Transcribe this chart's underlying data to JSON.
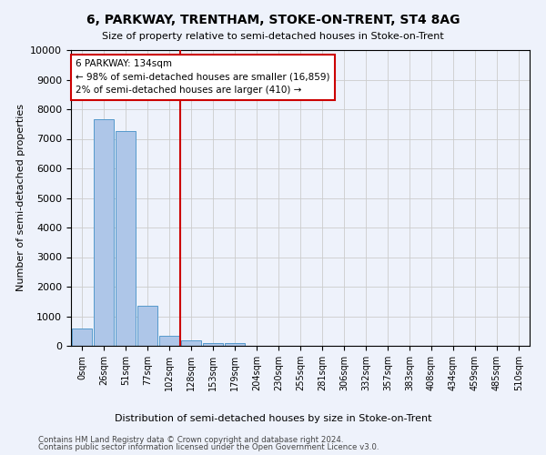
{
  "title": "6, PARKWAY, TRENTHAM, STOKE-ON-TRENT, ST4 8AG",
  "subtitle": "Size of property relative to semi-detached houses in Stoke-on-Trent",
  "xlabel": "Distribution of semi-detached houses by size in Stoke-on-Trent",
  "ylabel": "Number of semi-detached properties",
  "footer_line1": "Contains HM Land Registry data © Crown copyright and database right 2024.",
  "footer_line2": "Contains public sector information licensed under the Open Government Licence v3.0.",
  "bar_labels": [
    "0sqm",
    "26sqm",
    "51sqm",
    "77sqm",
    "102sqm",
    "128sqm",
    "153sqm",
    "179sqm",
    "204sqm",
    "230sqm",
    "255sqm",
    "281sqm",
    "306sqm",
    "332sqm",
    "357sqm",
    "383sqm",
    "408sqm",
    "434sqm",
    "459sqm",
    "485sqm",
    "510sqm"
  ],
  "bar_values": [
    580,
    7650,
    7250,
    1350,
    330,
    170,
    100,
    90,
    0,
    0,
    0,
    0,
    0,
    0,
    0,
    0,
    0,
    0,
    0,
    0,
    0
  ],
  "bar_color": "#aec6e8",
  "bar_edge_color": "#5599cc",
  "vline_pos": 4.5,
  "annotation_title": "6 PARKWAY: 134sqm",
  "annotation_line1": "← 98% of semi-detached houses are smaller (16,859)",
  "annotation_line2": "2% of semi-detached houses are larger (410) →",
  "annotation_box_color": "#ffffff",
  "annotation_box_edge": "#cc0000",
  "vline_color": "#cc0000",
  "ylim": [
    0,
    10000
  ],
  "yticks": [
    0,
    1000,
    2000,
    3000,
    4000,
    5000,
    6000,
    7000,
    8000,
    9000,
    10000
  ],
  "grid_color": "#cccccc",
  "bg_color": "#eef2fb"
}
